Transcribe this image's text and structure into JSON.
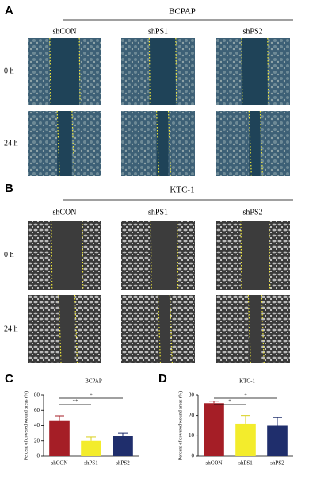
{
  "panels": {
    "A": {
      "label": "A",
      "cell_line": "BCPAP",
      "columns": [
        "shCON",
        "shPS1",
        "shPS2"
      ],
      "rows": [
        "0 h",
        "24 h"
      ]
    },
    "B": {
      "label": "B",
      "cell_line": "KTC-1",
      "columns": [
        "shCON",
        "shPS1",
        "shPS2"
      ],
      "rows": [
        "0 h",
        "24 h"
      ]
    }
  },
  "chart_data": [
    {
      "type": "bar",
      "panel": "C",
      "title": "BCPAP",
      "ylabel": "Percent of covered wound areas (%)",
      "categories": [
        "shCON",
        "shPS1",
        "shPS2"
      ],
      "values": [
        46,
        20,
        26
      ],
      "errors": [
        7,
        5,
        4
      ],
      "colors": [
        "#a51e26",
        "#f3ec2c",
        "#1f2e6c"
      ],
      "ylim": [
        0,
        80
      ],
      "yticks": [
        0,
        20,
        40,
        60,
        80
      ],
      "significance": [
        "**",
        "*"
      ]
    },
    {
      "type": "bar",
      "panel": "D",
      "title": "KTC-1",
      "ylabel": "Percent of covered wound areas (%)",
      "categories": [
        "shCON",
        "shPS1",
        "shPS2"
      ],
      "values": [
        26,
        16,
        15
      ],
      "errors": [
        1,
        4,
        4
      ],
      "colors": [
        "#a51e26",
        "#f3ec2c",
        "#1f2e6c"
      ],
      "ylim": [
        0,
        30
      ],
      "yticks": [
        0,
        10,
        20,
        30
      ],
      "significance": [
        "*",
        "*"
      ]
    }
  ]
}
